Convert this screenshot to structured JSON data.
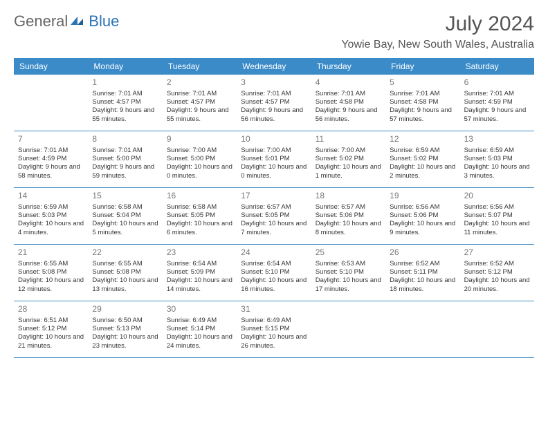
{
  "logo": {
    "text1": "General",
    "text2": "Blue"
  },
  "title": "July 2024",
  "location": "Yowie Bay, New South Wales, Australia",
  "colors": {
    "header_bg": "#3b8bc9",
    "header_text": "#ffffff",
    "border": "#3b8bc9",
    "logo_blue": "#2a74b8",
    "text": "#333333",
    "daynum": "#777777",
    "bg": "#ffffff"
  },
  "weekdays": [
    "Sunday",
    "Monday",
    "Tuesday",
    "Wednesday",
    "Thursday",
    "Friday",
    "Saturday"
  ],
  "leading_blanks": 1,
  "days": [
    {
      "n": 1,
      "sr": "7:01 AM",
      "ss": "4:57 PM",
      "dl": "9 hours and 55 minutes."
    },
    {
      "n": 2,
      "sr": "7:01 AM",
      "ss": "4:57 PM",
      "dl": "9 hours and 55 minutes."
    },
    {
      "n": 3,
      "sr": "7:01 AM",
      "ss": "4:57 PM",
      "dl": "9 hours and 56 minutes."
    },
    {
      "n": 4,
      "sr": "7:01 AM",
      "ss": "4:58 PM",
      "dl": "9 hours and 56 minutes."
    },
    {
      "n": 5,
      "sr": "7:01 AM",
      "ss": "4:58 PM",
      "dl": "9 hours and 57 minutes."
    },
    {
      "n": 6,
      "sr": "7:01 AM",
      "ss": "4:59 PM",
      "dl": "9 hours and 57 minutes."
    },
    {
      "n": 7,
      "sr": "7:01 AM",
      "ss": "4:59 PM",
      "dl": "9 hours and 58 minutes."
    },
    {
      "n": 8,
      "sr": "7:01 AM",
      "ss": "5:00 PM",
      "dl": "9 hours and 59 minutes."
    },
    {
      "n": 9,
      "sr": "7:00 AM",
      "ss": "5:00 PM",
      "dl": "10 hours and 0 minutes."
    },
    {
      "n": 10,
      "sr": "7:00 AM",
      "ss": "5:01 PM",
      "dl": "10 hours and 0 minutes."
    },
    {
      "n": 11,
      "sr": "7:00 AM",
      "ss": "5:02 PM",
      "dl": "10 hours and 1 minute."
    },
    {
      "n": 12,
      "sr": "6:59 AM",
      "ss": "5:02 PM",
      "dl": "10 hours and 2 minutes."
    },
    {
      "n": 13,
      "sr": "6:59 AM",
      "ss": "5:03 PM",
      "dl": "10 hours and 3 minutes."
    },
    {
      "n": 14,
      "sr": "6:59 AM",
      "ss": "5:03 PM",
      "dl": "10 hours and 4 minutes."
    },
    {
      "n": 15,
      "sr": "6:58 AM",
      "ss": "5:04 PM",
      "dl": "10 hours and 5 minutes."
    },
    {
      "n": 16,
      "sr": "6:58 AM",
      "ss": "5:05 PM",
      "dl": "10 hours and 6 minutes."
    },
    {
      "n": 17,
      "sr": "6:57 AM",
      "ss": "5:05 PM",
      "dl": "10 hours and 7 minutes."
    },
    {
      "n": 18,
      "sr": "6:57 AM",
      "ss": "5:06 PM",
      "dl": "10 hours and 8 minutes."
    },
    {
      "n": 19,
      "sr": "6:56 AM",
      "ss": "5:06 PM",
      "dl": "10 hours and 9 minutes."
    },
    {
      "n": 20,
      "sr": "6:56 AM",
      "ss": "5:07 PM",
      "dl": "10 hours and 11 minutes."
    },
    {
      "n": 21,
      "sr": "6:55 AM",
      "ss": "5:08 PM",
      "dl": "10 hours and 12 minutes."
    },
    {
      "n": 22,
      "sr": "6:55 AM",
      "ss": "5:08 PM",
      "dl": "10 hours and 13 minutes."
    },
    {
      "n": 23,
      "sr": "6:54 AM",
      "ss": "5:09 PM",
      "dl": "10 hours and 14 minutes."
    },
    {
      "n": 24,
      "sr": "6:54 AM",
      "ss": "5:10 PM",
      "dl": "10 hours and 16 minutes."
    },
    {
      "n": 25,
      "sr": "6:53 AM",
      "ss": "5:10 PM",
      "dl": "10 hours and 17 minutes."
    },
    {
      "n": 26,
      "sr": "6:52 AM",
      "ss": "5:11 PM",
      "dl": "10 hours and 18 minutes."
    },
    {
      "n": 27,
      "sr": "6:52 AM",
      "ss": "5:12 PM",
      "dl": "10 hours and 20 minutes."
    },
    {
      "n": 28,
      "sr": "6:51 AM",
      "ss": "5:12 PM",
      "dl": "10 hours and 21 minutes."
    },
    {
      "n": 29,
      "sr": "6:50 AM",
      "ss": "5:13 PM",
      "dl": "10 hours and 23 minutes."
    },
    {
      "n": 30,
      "sr": "6:49 AM",
      "ss": "5:14 PM",
      "dl": "10 hours and 24 minutes."
    },
    {
      "n": 31,
      "sr": "6:49 AM",
      "ss": "5:15 PM",
      "dl": "10 hours and 26 minutes."
    }
  ],
  "labels": {
    "sunrise": "Sunrise:",
    "sunset": "Sunset:",
    "daylight": "Daylight:"
  }
}
